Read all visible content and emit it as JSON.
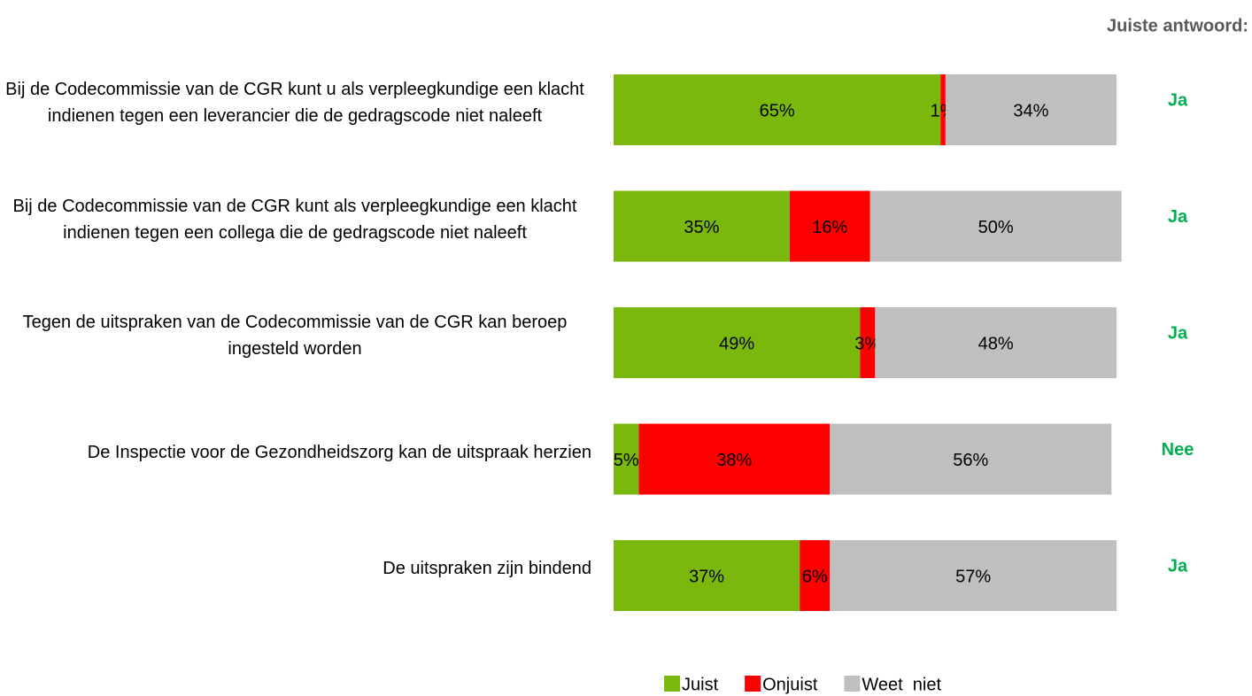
{
  "chart_data": {
    "type": "stacked_bar_horizontal",
    "categories": [
      "Bij de Codecommissie van de CGR kunt u als verpleegkundige een klacht indienen tegen een leverancier die de gedragscode niet naleeft",
      "Bij de Codecommissie van de CGR kunt als verpleegkundige een klacht indienen tegen een collega die de gedragscode niet naleeft",
      "Tegen de uitspraken van de Codecommissie van de CGR kan beroep ingesteld worden",
      "De Inspectie voor de Gezondheidszorg kan de uitspraak herzien",
      "De uitspraken zijn bindend"
    ],
    "series": [
      {
        "name": "Juist",
        "color": "#7ab80e",
        "values": [
          65,
          35,
          49,
          5,
          37
        ],
        "value_labels": [
          "65%",
          "35%",
          "49%",
          "5%",
          "37%"
        ]
      },
      {
        "name": "Onjuist",
        "color": "#ff0000",
        "values": [
          1,
          16,
          3,
          38,
          6
        ],
        "value_labels": [
          "1%",
          "16%",
          "3%",
          "38%",
          "6%"
        ]
      },
      {
        "name": "Weet  niet",
        "color": "#bfbfbf",
        "values": [
          34,
          50,
          48,
          56,
          57
        ],
        "value_labels": [
          "34%",
          "50%",
          "48%",
          "56%",
          "57%"
        ]
      }
    ],
    "xlim": [
      0,
      100
    ],
    "answer_title": "Juiste antwoord:",
    "answers": [
      "Ja",
      "Ja",
      "Ja",
      "Nee",
      "Ja"
    ],
    "answer_color": "#00b050",
    "legend": "bottom"
  }
}
